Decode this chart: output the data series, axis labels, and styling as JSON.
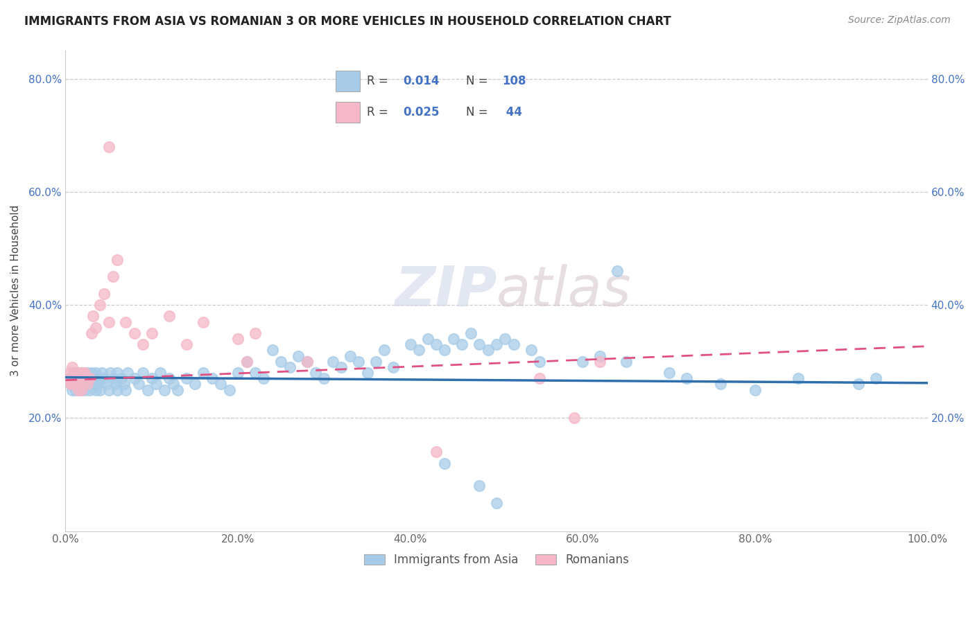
{
  "title": "IMMIGRANTS FROM ASIA VS ROMANIAN 3 OR MORE VEHICLES IN HOUSEHOLD CORRELATION CHART",
  "source": "Source: ZipAtlas.com",
  "ylabel": "3 or more Vehicles in Household",
  "xlim": [
    0.0,
    1.0
  ],
  "ylim": [
    0.0,
    0.85
  ],
  "x_ticks": [
    0.0,
    0.2,
    0.4,
    0.6,
    0.8,
    1.0
  ],
  "x_tick_labels": [
    "0.0%",
    "20.0%",
    "40.0%",
    "60.0%",
    "80.0%",
    "100.0%"
  ],
  "y_ticks": [
    0.2,
    0.4,
    0.6,
    0.8
  ],
  "y_tick_labels": [
    "20.0%",
    "40.0%",
    "60.0%",
    "80.0%"
  ],
  "legend_label1": "Immigrants from Asia",
  "legend_label2": "Romanians",
  "scatter_color1": "#a8cce8",
  "scatter_color2": "#f4b8c8",
  "line_color1": "#2f6fad",
  "line_color2": "#e05080",
  "watermark": "ZIPatlas",
  "background_color": "#ffffff",
  "grid_color": "#cccccc",
  "R1": 0.014,
  "N1": 108,
  "R2": 0.025,
  "N2": 44,
  "legend_R1": "0.014",
  "legend_N1": "108",
  "legend_R2": "0.025",
  "legend_N2": "44",
  "legend_text_color": "#4472c4",
  "legend_label_color": "#444444"
}
